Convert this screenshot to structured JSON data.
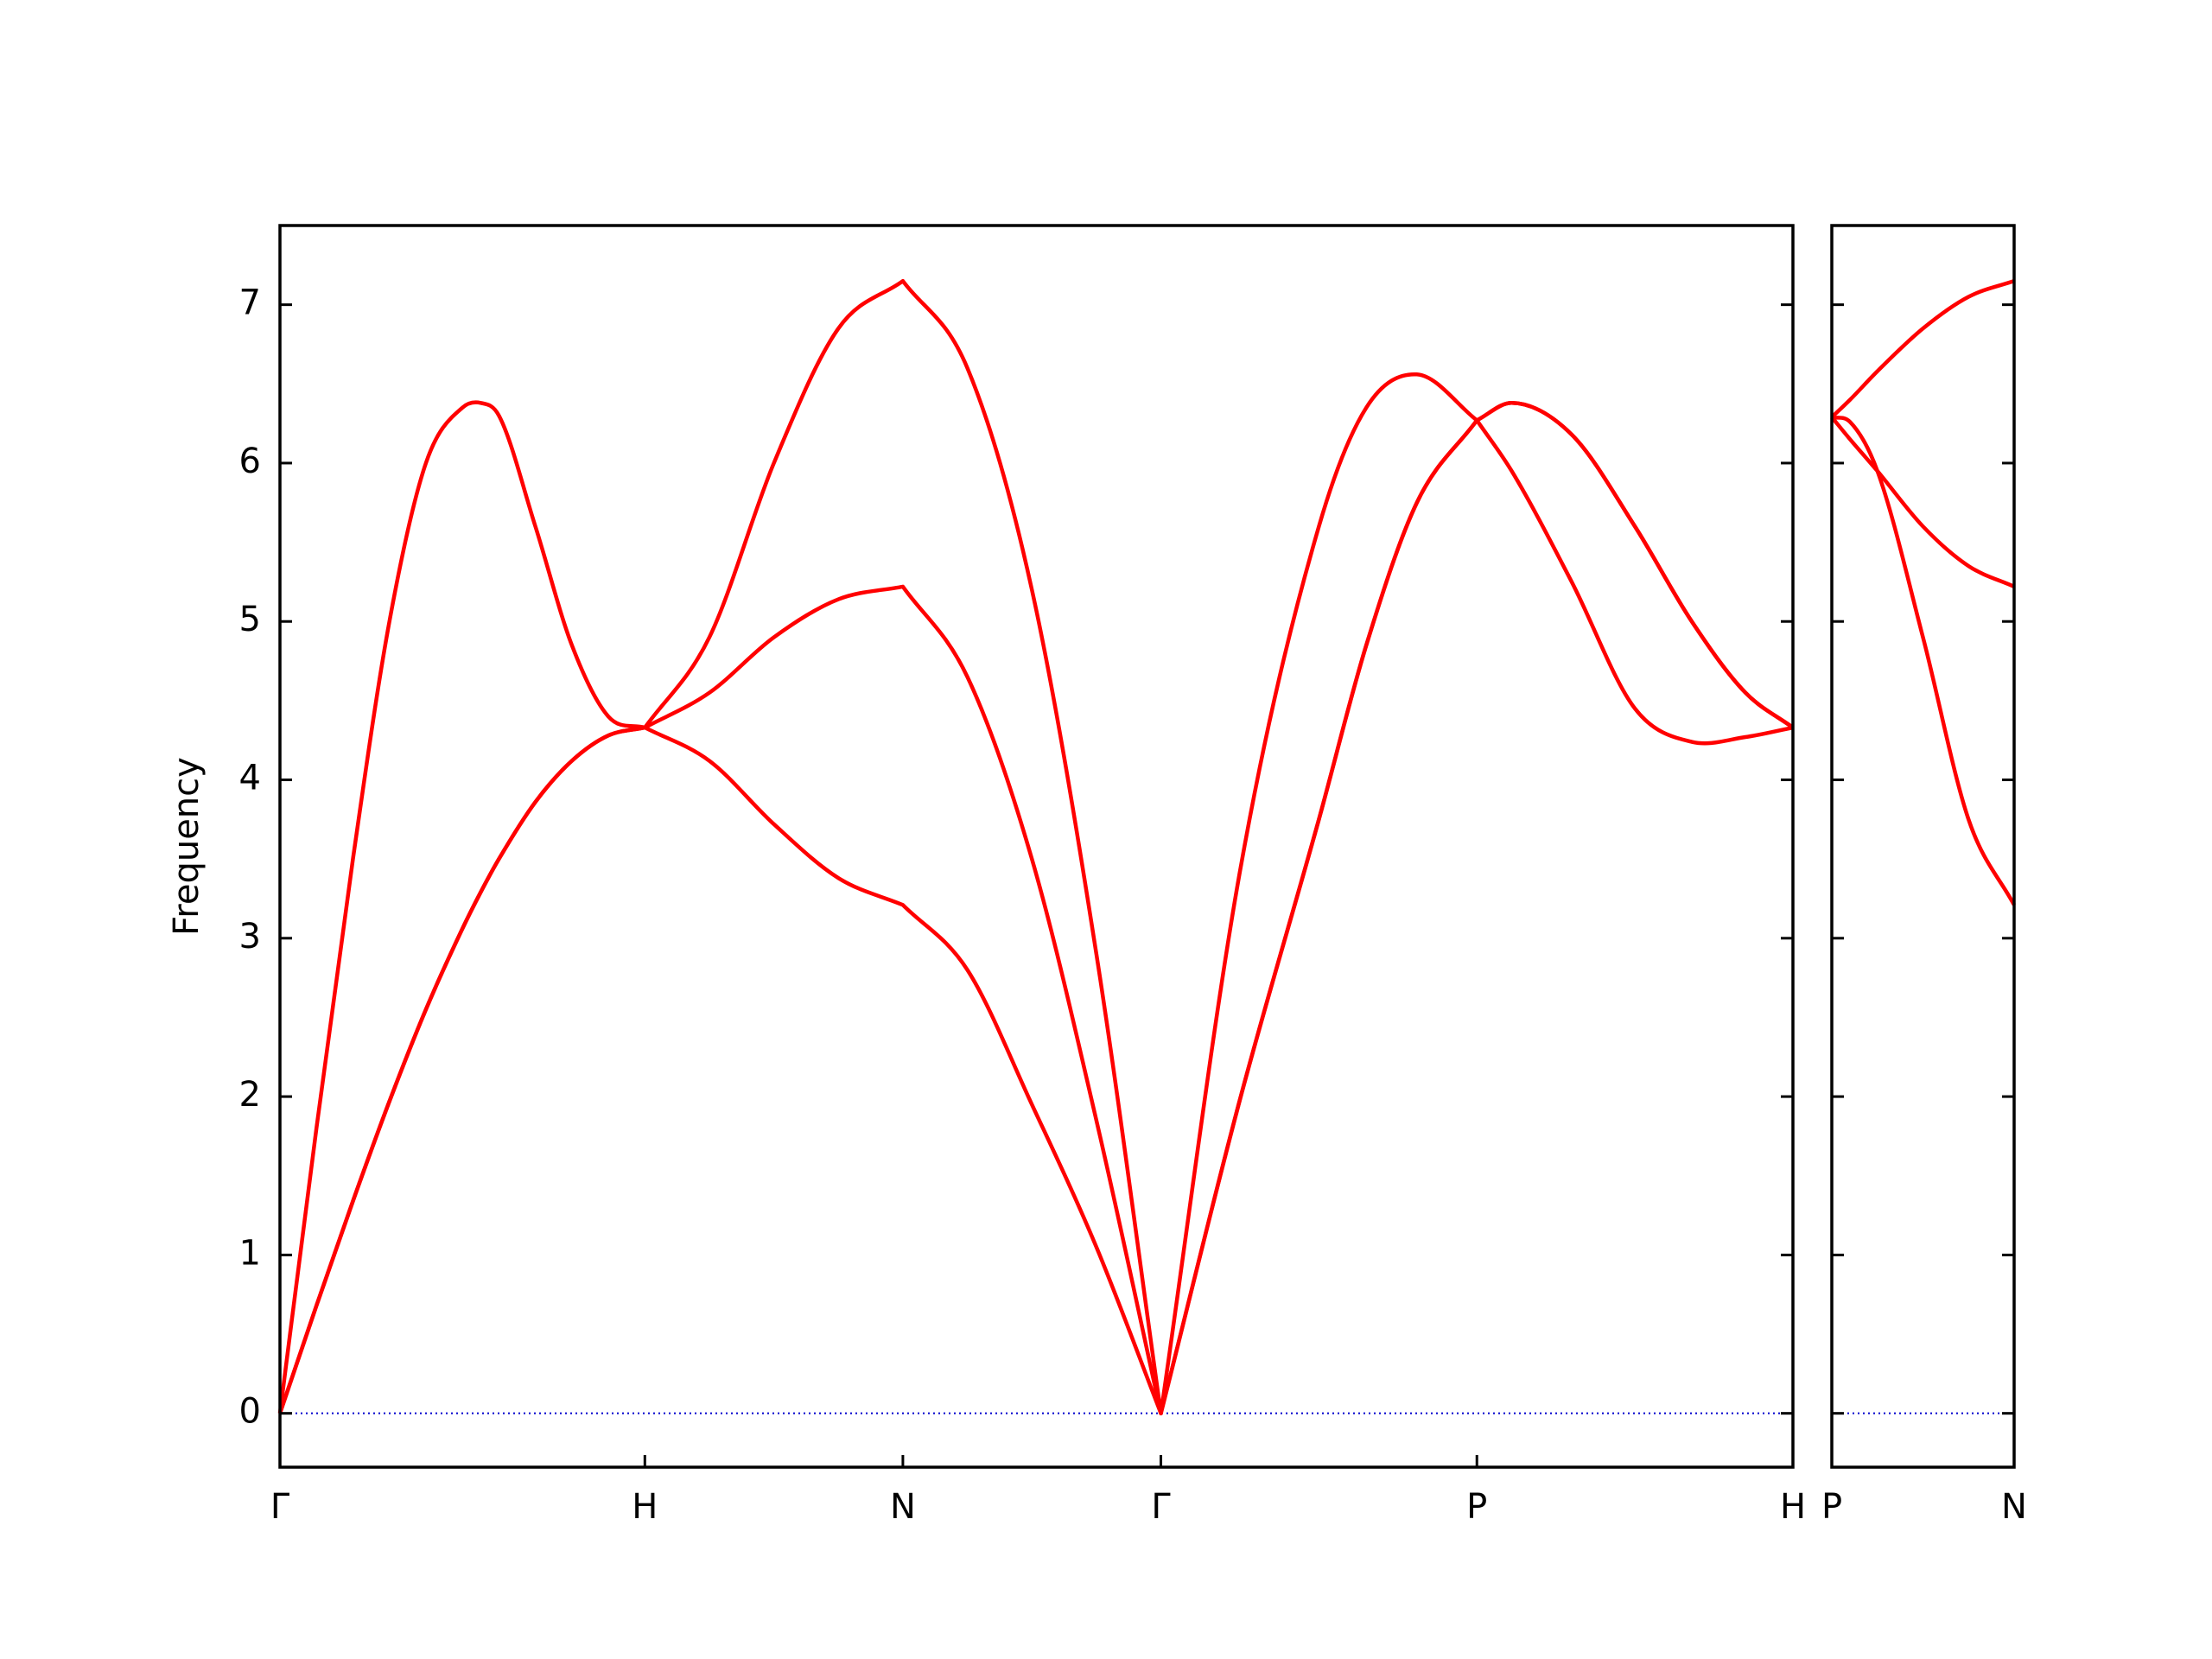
{
  "chart_data": [
    {
      "type": "line",
      "ylabel": "Frequency",
      "x": [
        0,
        0.1,
        0.2,
        0.3,
        0.4,
        0.5,
        0.55,
        0.6,
        0.7,
        0.8,
        0.9,
        1.0,
        1.1768,
        1.3536,
        1.5303,
        1.7071,
        1.8839,
        2.0607,
        2.2374,
        2.4142,
        2.6307,
        2.8472,
        2.9771,
        3.1157,
        3.2802,
        3.3755,
        3.54,
        3.7133,
        3.8691,
        4.0163,
        4.1463
      ],
      "xlim": [
        0,
        4.1463
      ],
      "xticks": [
        {
          "value": 0,
          "label": "Γ"
        },
        {
          "value": 1.0,
          "label": "H"
        },
        {
          "value": 1.7071,
          "label": "N"
        },
        {
          "value": 2.4142,
          "label": "Γ"
        },
        {
          "value": 3.2802,
          "label": "P"
        },
        {
          "value": 4.1463,
          "label": "H"
        }
      ],
      "ylim": [
        -0.34,
        7.5
      ],
      "yticks": [
        0,
        1,
        2,
        3,
        4,
        5,
        6,
        7
      ],
      "hline": 0,
      "hline_color": "#0000cd",
      "series": [
        {
          "color": "#ff0000",
          "values": [
            0,
            1.8,
            3.5,
            5.0,
            6.0,
            6.35,
            6.38,
            6.3,
            5.6,
            4.85,
            4.4,
            4.33,
            4.9,
            6.0,
            6.85,
            7.15,
            6.6,
            5.2,
            2.9,
            0,
            3.42,
            5.6,
            6.35,
            6.56,
            6.27,
            5.95,
            5.25,
            4.45,
            4.24,
            4.27,
            4.33
          ]
        },
        {
          "color": "#ff0000",
          "values": [
            0,
            0.68,
            1.34,
            1.97,
            2.55,
            3.06,
            3.29,
            3.5,
            3.86,
            4.12,
            4.28,
            4.33,
            4.55,
            4.9,
            5.14,
            5.22,
            4.65,
            3.5,
            1.85,
            0,
            1.98,
            3.75,
            4.85,
            5.75,
            6.27,
            6.38,
            6.18,
            5.6,
            5.0,
            4.55,
            4.33
          ]
        },
        {
          "color": "#ff0000",
          "values": [
            0,
            0.68,
            1.34,
            1.97,
            2.55,
            3.06,
            3.29,
            3.5,
            3.86,
            4.12,
            4.28,
            4.33,
            4.12,
            3.72,
            3.38,
            3.21,
            2.8,
            1.95,
            1.05,
            0,
            1.98,
            3.75,
            4.85,
            5.75,
            6.27,
            6.38,
            6.18,
            5.6,
            5.0,
            4.55,
            4.33
          ]
        }
      ]
    },
    {
      "type": "line",
      "x": [
        0,
        0.05,
        0.125,
        0.25,
        0.375,
        0.5
      ],
      "xlim": [
        0,
        0.5
      ],
      "xticks": [
        {
          "value": 0,
          "label": "P"
        },
        {
          "value": 0.5,
          "label": "N"
        }
      ],
      "ylim": [
        -0.34,
        7.5
      ],
      "yticks": [
        0,
        1,
        2,
        3,
        4,
        5,
        6,
        7
      ],
      "ytick_labels": false,
      "hline": 0,
      "hline_color": "#0000cd",
      "series": [
        {
          "color": "#ff0000",
          "values": [
            6.29,
            6.4,
            6.58,
            6.85,
            7.05,
            7.15
          ]
        },
        {
          "color": "#ff0000",
          "values": [
            6.29,
            6.15,
            5.95,
            5.6,
            5.35,
            5.22
          ]
        },
        {
          "color": "#ff0000",
          "values": [
            6.29,
            6.26,
            5.95,
            4.9,
            3.75,
            3.21
          ]
        }
      ]
    }
  ]
}
